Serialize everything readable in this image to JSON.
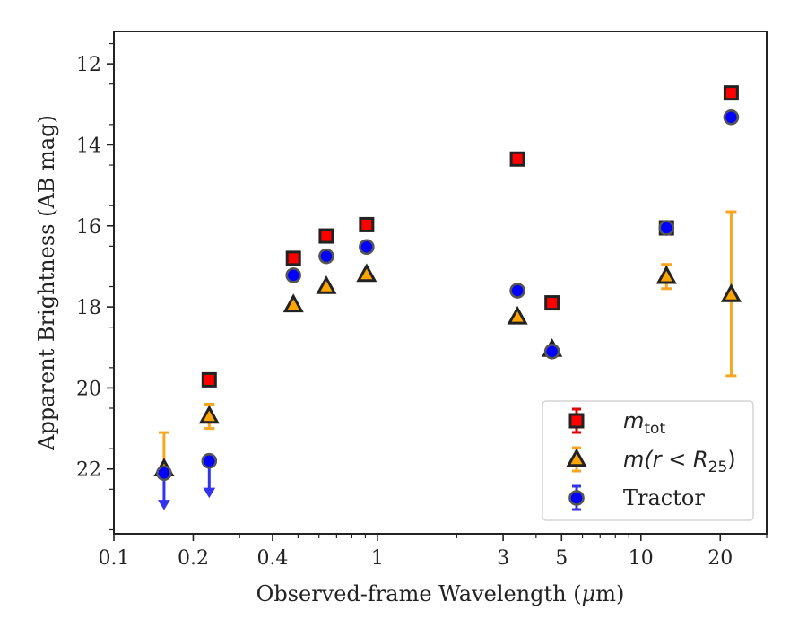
{
  "chart_data": {
    "type": "scatter",
    "xlabel_prefix": "Observed-frame Wavelength (",
    "xlabel_mu": "μ",
    "xlabel_suffix": "m)",
    "ylabel": "Apparent Brightness (AB mag)",
    "xscale": "log",
    "xlim": [
      0.1,
      30
    ],
    "ylim": [
      23.6,
      11.2
    ],
    "y_inverted": true,
    "grid": false,
    "legend_position": "lower-right",
    "x_ticks": [
      0.1,
      0.2,
      0.4,
      1,
      3,
      5,
      10,
      20
    ],
    "x_tick_labels": [
      "0.1",
      "0.2",
      "0.4",
      "1",
      "3",
      "5",
      "10",
      "20"
    ],
    "y_ticks": [
      12,
      14,
      16,
      18,
      20,
      22
    ],
    "y_tick_labels": [
      "12",
      "14",
      "16",
      "18",
      "20",
      "22"
    ],
    "series": [
      {
        "name": "m_tot",
        "legend_main": "m",
        "legend_sub": "tot",
        "marker": "square",
        "color": "#ff0000",
        "error_color": "#e00000",
        "points": [
          {
            "x": 0.23,
            "y": 19.8
          },
          {
            "x": 0.48,
            "y": 16.8
          },
          {
            "x": 0.64,
            "y": 16.25
          },
          {
            "x": 0.91,
            "y": 15.97
          },
          {
            "x": 3.4,
            "y": 14.35
          },
          {
            "x": 4.6,
            "y": 17.9
          },
          {
            "x": 12.5,
            "y": 16.05
          },
          {
            "x": 22,
            "y": 12.72
          }
        ]
      },
      {
        "name": "m(r<R25)",
        "legend_main": "m(r < R",
        "legend_sub": "25",
        "legend_end": ")",
        "marker": "triangle",
        "color": "#ffa500",
        "error_color": "#f5a623",
        "points": [
          {
            "x": 0.155,
            "y": 22.0,
            "yerr_low": 21.1,
            "yerr_high": 22.0
          },
          {
            "x": 0.23,
            "y": 20.7,
            "yerr_low": 20.4,
            "yerr_high": 21.0
          },
          {
            "x": 0.48,
            "y": 17.95
          },
          {
            "x": 0.64,
            "y": 17.5
          },
          {
            "x": 0.91,
            "y": 17.2
          },
          {
            "x": 3.4,
            "y": 18.25
          },
          {
            "x": 4.6,
            "y": 19.05
          },
          {
            "x": 12.5,
            "y": 17.25,
            "yerr_low": 16.95,
            "yerr_high": 17.55
          },
          {
            "x": 22,
            "y": 17.7,
            "yerr_low": 15.65,
            "yerr_high": 19.7
          }
        ]
      },
      {
        "name": "Tractor",
        "legend_main": "Tractor",
        "marker": "circle",
        "color": "#0000ff",
        "error_color": "#3333ee",
        "points": [
          {
            "x": 0.155,
            "y": 22.1,
            "upper_limit": true,
            "limit_to": 22.95
          },
          {
            "x": 0.23,
            "y": 21.8,
            "upper_limit": true,
            "limit_to": 22.65
          },
          {
            "x": 0.48,
            "y": 17.22
          },
          {
            "x": 0.64,
            "y": 16.75
          },
          {
            "x": 0.91,
            "y": 16.52
          },
          {
            "x": 3.4,
            "y": 17.6
          },
          {
            "x": 4.6,
            "y": 19.1
          },
          {
            "x": 12.5,
            "y": 16.05
          },
          {
            "x": 22,
            "y": 13.32
          }
        ]
      }
    ]
  }
}
